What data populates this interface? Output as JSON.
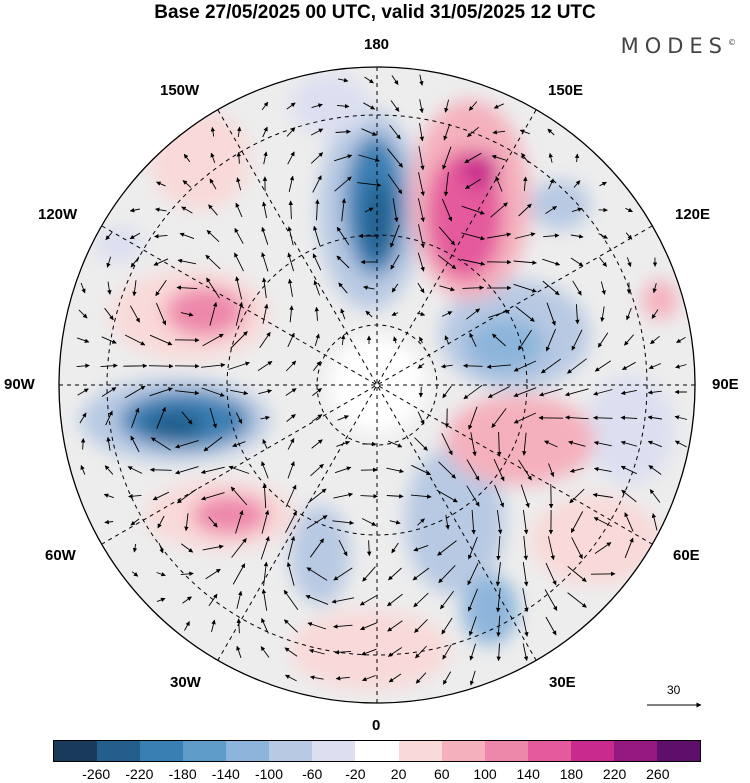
{
  "title": "Base 27/05/2025 00 UTC, valid 31/05/2025 12 UTC",
  "brand": "MODES",
  "brand_mark": "©",
  "longitude_labels": {
    "top": "180",
    "bottom": "0",
    "left": "90W",
    "right": "90E",
    "ul150": "150W",
    "ul120": "120W",
    "ur150": "150E",
    "ur120": "120E",
    "ll60": "60W",
    "ll30": "30W",
    "lr60": "60E",
    "lr30": "30E"
  },
  "vector_reference": "30",
  "colorbar": {
    "colors": [
      "#1a3a5c",
      "#235e8d",
      "#3a7fb4",
      "#5f9cc9",
      "#8db5db",
      "#b8c9e3",
      "#dcdff0",
      "#ffffff",
      "#f9d9d9",
      "#f5b0bd",
      "#ee88ab",
      "#e45a9c",
      "#c92a8e",
      "#961982",
      "#5e0f6b"
    ],
    "ticks": [
      "-260",
      "-220",
      "-180",
      "-140",
      "-100",
      "-60",
      "-20",
      "20",
      "60",
      "100",
      "140",
      "180",
      "220",
      "260"
    ]
  }
}
